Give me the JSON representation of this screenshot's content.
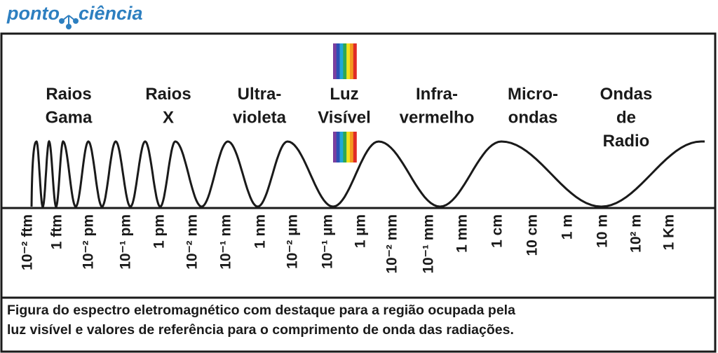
{
  "header": {
    "logo_left": "ponto",
    "logo_right": "ciência"
  },
  "regions": [
    {
      "lines": [
        "Raios",
        "Gama"
      ]
    },
    {
      "lines": [
        "Raios",
        "X"
      ]
    },
    {
      "lines": [
        "Ultra-",
        "violeta"
      ]
    },
    {
      "lines": [
        "Luz",
        "Visível"
      ]
    },
    {
      "lines": [
        "Infra-",
        "vermelho"
      ]
    },
    {
      "lines": [
        "Micro-",
        "ondas"
      ]
    },
    {
      "lines": [
        "Ondas",
        "de",
        "Radio"
      ]
    }
  ],
  "scale_ticks": [
    "10⁻² ftm",
    "1 ftm",
    "10⁻² pm",
    "10⁻¹ pm",
    "1 pm",
    "10⁻² nm",
    "10⁻¹ nm",
    "1 nm",
    "10⁻² µm",
    "10⁻¹ µm",
    "1 µm",
    "10⁻² mm",
    "10⁻¹ mm",
    "1 mm",
    "1 cm",
    "10 cm",
    "1 m",
    "10 m",
    "10² m",
    "1 Km"
  ],
  "caption": {
    "lines": [
      "Figura do espectro eletromagnético com destaque para a região ocupada pela",
      "luz visível e valores de referência para o comprimento de onda das radiações."
    ]
  }
}
